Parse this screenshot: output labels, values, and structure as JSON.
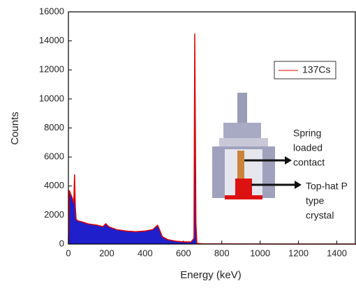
{
  "chart_data": {
    "type": "area",
    "xlabel": "Energy (keV)",
    "ylabel": "Counts",
    "x": [
      0,
      5,
      10,
      20,
      28,
      32,
      36,
      40,
      50,
      80,
      100,
      150,
      180,
      195,
      210,
      250,
      300,
      350,
      400,
      440,
      465,
      475,
      490,
      520,
      560,
      600,
      640,
      655,
      659,
      662,
      665,
      670,
      700,
      800,
      1000,
      1500
    ],
    "series": [
      {
        "name": "137Cs",
        "color": "#1f1fcc",
        "line_color": "#e00000",
        "values": [
          0,
          3700,
          3500,
          3200,
          2800,
          4800,
          2600,
          1700,
          1600,
          1500,
          1400,
          1300,
          1200,
          1400,
          1200,
          1000,
          900,
          850,
          900,
          1000,
          1300,
          1000,
          500,
          300,
          200,
          150,
          150,
          400,
          14500,
          8000,
          1500,
          50,
          20,
          10,
          5,
          0
        ]
      }
    ],
    "xlim": [
      0,
      1500
    ],
    "xticks": [
      0,
      200,
      400,
      600,
      800,
      1000,
      1200,
      1400
    ],
    "ylim": [
      0,
      16000
    ],
    "yticks": [
      0,
      2000,
      4000,
      6000,
      8000,
      10000,
      12000,
      14000,
      16000
    ],
    "legend": "upper-right",
    "annotations": [
      {
        "lines": [
          "Spring",
          "loaded",
          "contact"
        ]
      },
      {
        "lines": [
          "Top-hat P",
          "type",
          "crystal"
        ]
      }
    ]
  }
}
